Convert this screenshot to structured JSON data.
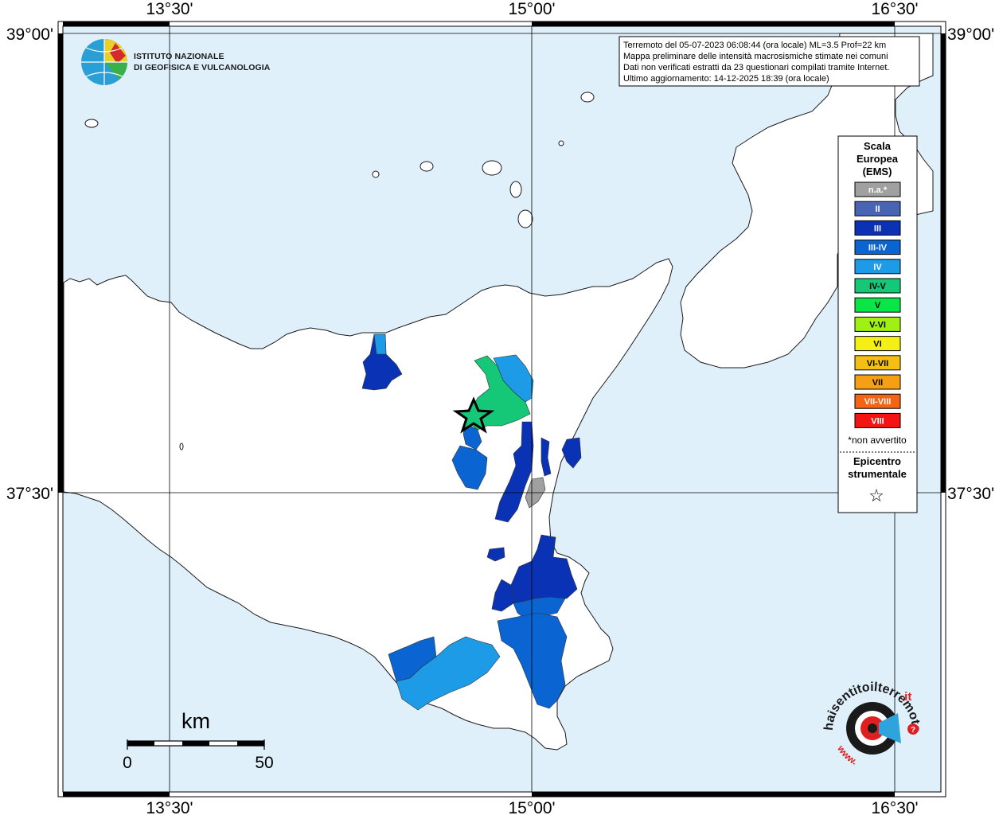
{
  "coordinates": {
    "top_left": "13°30'",
    "top_mid": "15°00'",
    "top_right": "16°30'",
    "bottom_left": "13°30'",
    "bottom_mid": "15°00'",
    "bottom_right": "16°30'",
    "left_top": "39°00'",
    "left_mid": "37°30'",
    "right_top": "39°00'",
    "right_mid": "37°30'"
  },
  "institute": {
    "line1": "ISTITUTO NAZIONALE",
    "line2": "DI GEOFISICA E VULCANOLOGIA"
  },
  "info": {
    "line1": "Terremoto del 05-07-2023 06:08:44 (ora locale) ML=3.5 Prof=22 km",
    "line2": "Mappa preliminare delle intensità macrosismiche stimate nei comuni",
    "line3": "Dati non verificati estratti da 23 questionari compilati tramite Internet.",
    "line4": "Ultimo aggiornamento: 14-12-2025 18:39 (ora locale)"
  },
  "legend": {
    "title_line1": "Scala",
    "title_line2": "Europea",
    "title_line3": "(EMS)",
    "items": [
      {
        "label": "n.a.*",
        "color": "#a0a0a0"
      },
      {
        "label": "II",
        "color": "#4a64b4"
      },
      {
        "label": "III",
        "color": "#0a32b4"
      },
      {
        "label": "III-IV",
        "color": "#0a64d2"
      },
      {
        "label": "IV",
        "color": "#1e9be6"
      },
      {
        "label": "IV-V",
        "color": "#14c878"
      },
      {
        "label": "V",
        "color": "#0ae646"
      },
      {
        "label": "V-VI",
        "color": "#a0f014"
      },
      {
        "label": "VI",
        "color": "#f5f014"
      },
      {
        "label": "VI-VII",
        "color": "#f5be14"
      },
      {
        "label": "VII",
        "color": "#f5a014"
      },
      {
        "label": "VII-VIII",
        "color": "#f56414"
      },
      {
        "label": "VIII",
        "color": "#f51414"
      }
    ],
    "note": "*non avvertito",
    "epicenter_line1": "Epicentro",
    "epicenter_line2": "strumentale",
    "epicenter_symbol": "☆"
  },
  "scale_bar": {
    "unit": "km",
    "min_label": "0",
    "max_label": "50"
  },
  "haisentito": {
    "text_main": "haisentitoilterremoto",
    "text_it": ".it",
    "text_www": "www."
  }
}
